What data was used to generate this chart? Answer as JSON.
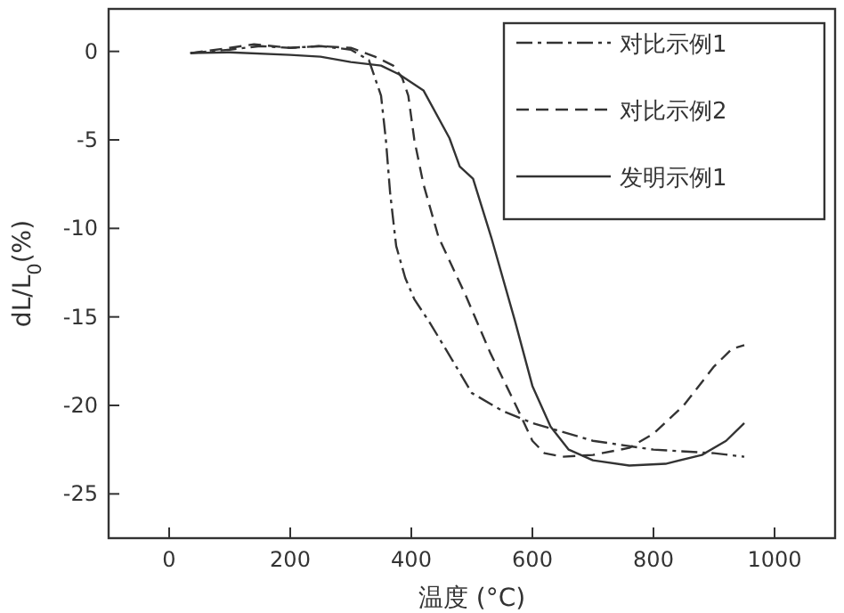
{
  "chart_data": {
    "type": "line",
    "xlabel": "温度 (°C)",
    "ylabel": "dL/L$_{0}$(%)",
    "xlim": [
      -100,
      1100
    ],
    "ylim": [
      -27.5,
      2.4
    ],
    "xticks": [
      0,
      200,
      400,
      600,
      800,
      1000
    ],
    "yticks": [
      0,
      -5,
      -10,
      -15,
      -20,
      -25
    ],
    "legend": "top right",
    "grid": false,
    "marker": "none",
    "series": [
      {
        "name": "对比示例1",
        "color": "#333333",
        "line_style": "dashdot",
        "x": [
          35,
          100,
          150,
          200,
          250,
          300,
          330,
          350,
          358,
          365,
          375,
          390,
          405,
          430,
          460,
          500,
          550,
          600,
          700,
          800,
          900,
          950
        ],
        "values": [
          -0.1,
          0.1,
          0.3,
          0.2,
          0.3,
          0.1,
          -0.5,
          -2.5,
          -5,
          -8,
          -11,
          -12.8,
          -14,
          -15.3,
          -17,
          -19.3,
          -20.3,
          -21,
          -22,
          -22.5,
          -22.7,
          -22.9
        ]
      },
      {
        "name": "对比示例2",
        "color": "#333333",
        "line_style": "dashed",
        "x": [
          35,
          100,
          140,
          200,
          250,
          300,
          340,
          370,
          385,
          395,
          405,
          420,
          445,
          490,
          530,
          570,
          600,
          620,
          650,
          700,
          760,
          800,
          850,
          900,
          930,
          950
        ],
        "values": [
          -0.1,
          0.2,
          0.4,
          0.2,
          0.3,
          0.2,
          -0.3,
          -0.8,
          -1.5,
          -2.5,
          -5,
          -7.5,
          -10.5,
          -13.8,
          -17,
          -19.8,
          -22,
          -22.7,
          -22.9,
          -22.8,
          -22.4,
          -21.6,
          -20,
          -17.8,
          -16.8,
          -16.6
        ]
      },
      {
        "name": "发明示例1",
        "color": "#333333",
        "line_style": "solid",
        "x": [
          35,
          100,
          200,
          250,
          300,
          350,
          380,
          420,
          463,
          480,
          502,
          532,
          571,
          600,
          630,
          660,
          700,
          760,
          820,
          880,
          920,
          950
        ],
        "values": [
          -0.1,
          -0.05,
          -0.2,
          -0.3,
          -0.6,
          -0.8,
          -1.3,
          -2.2,
          -4.9,
          -6.5,
          -7.2,
          -10.5,
          -15.2,
          -18.9,
          -21.2,
          -22.5,
          -23.1,
          -23.4,
          -23.3,
          -22.8,
          -22,
          -21
        ]
      }
    ]
  }
}
